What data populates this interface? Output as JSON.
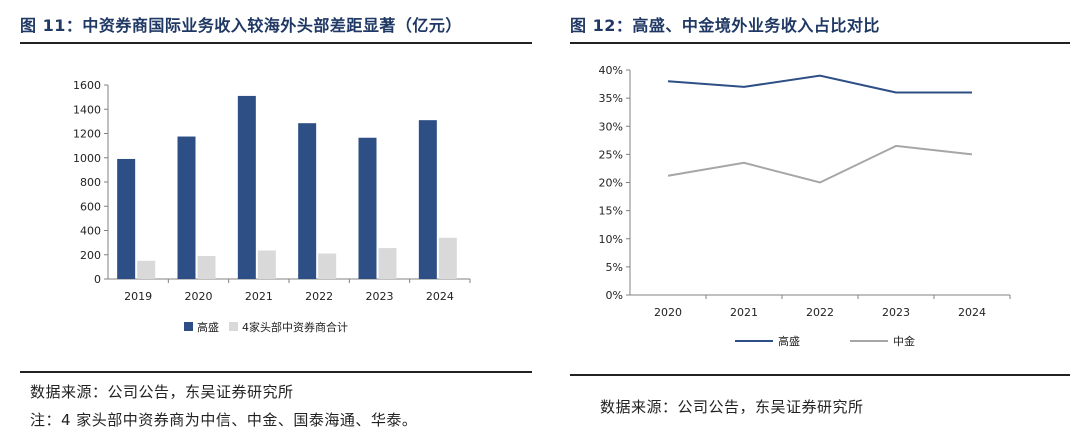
{
  "left": {
    "title": "图 11：中资券商国际业务收入较海外头部差距显著（亿元）",
    "source": "数据来源：公司公告，东吴证券研究所",
    "note": "注：4 家头部中资券商为中信、中金、国泰海通、华泰。"
  },
  "right": {
    "title": "图 12：高盛、中金境外业务收入占比对比",
    "source": "数据来源：公司公告，东吴证券研究所"
  },
  "colors": {
    "primary": "#2e4f86",
    "secondary": "#d9d9d9",
    "title": "#1f3864",
    "line2": "#a6a6a6"
  },
  "chart_data": [
    {
      "type": "bar",
      "categories": [
        "2019",
        "2020",
        "2021",
        "2022",
        "2023",
        "2024"
      ],
      "series": [
        {
          "name": "高盛",
          "values": [
            990,
            1175,
            1510,
            1285,
            1165,
            1310
          ]
        },
        {
          "name": "4家头部中资券商合计",
          "values": [
            150,
            190,
            235,
            210,
            255,
            340
          ]
        }
      ],
      "ylim": [
        0,
        1600
      ],
      "yticks": [
        "0",
        "200",
        "400",
        "600",
        "800",
        "1000",
        "1200",
        "1400",
        "1600"
      ],
      "legend": "bottom",
      "grid": false
    },
    {
      "type": "line",
      "categories": [
        "2020",
        "2021",
        "2022",
        "2023",
        "2024"
      ],
      "series": [
        {
          "name": "高盛",
          "values": [
            38,
            37,
            39,
            36,
            36
          ]
        },
        {
          "name": "中金",
          "values": [
            21.2,
            23.5,
            20,
            26.5,
            25
          ]
        }
      ],
      "ylim": [
        0,
        40
      ],
      "yticks": [
        "0%",
        "5%",
        "10%",
        "15%",
        "20%",
        "25%",
        "30%",
        "35%",
        "40%"
      ],
      "legend": "bottom",
      "grid": false
    }
  ]
}
